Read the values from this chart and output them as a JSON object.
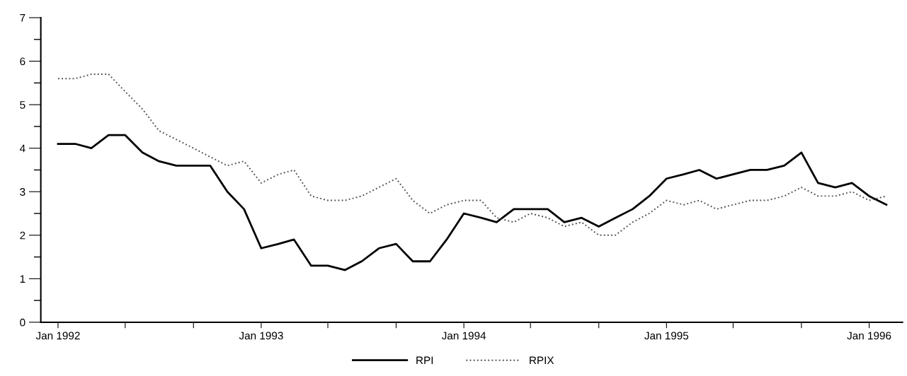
{
  "chart_data": {
    "type": "line",
    "x": [
      "1992-01",
      "1992-02",
      "1992-03",
      "1992-04",
      "1992-05",
      "1992-06",
      "1992-07",
      "1992-08",
      "1992-09",
      "1992-10",
      "1992-11",
      "1992-12",
      "1993-01",
      "1993-02",
      "1993-03",
      "1993-04",
      "1993-05",
      "1993-06",
      "1993-07",
      "1993-08",
      "1993-09",
      "1993-10",
      "1993-11",
      "1993-12",
      "1994-01",
      "1994-02",
      "1994-03",
      "1994-04",
      "1994-05",
      "1994-06",
      "1994-07",
      "1994-08",
      "1994-09",
      "1994-10",
      "1994-11",
      "1994-12",
      "1995-01",
      "1995-02",
      "1995-03",
      "1995-04",
      "1995-05",
      "1995-06",
      "1995-07",
      "1995-08",
      "1995-09",
      "1995-10",
      "1995-11",
      "1995-12",
      "1996-01",
      "1996-02"
    ],
    "series": [
      {
        "name": "RPI",
        "color": "#000000",
        "line_style": "solid",
        "values": [
          4.1,
          4.1,
          4.0,
          4.3,
          4.3,
          3.9,
          3.7,
          3.6,
          3.6,
          3.6,
          3.0,
          2.6,
          1.7,
          1.8,
          1.9,
          1.3,
          1.3,
          1.2,
          1.4,
          1.7,
          1.8,
          1.4,
          1.4,
          1.9,
          2.5,
          2.4,
          2.3,
          2.6,
          2.6,
          2.6,
          2.3,
          2.4,
          2.2,
          2.4,
          2.6,
          2.9,
          3.3,
          3.4,
          3.5,
          3.3,
          3.4,
          3.5,
          3.5,
          3.6,
          3.9,
          3.2,
          3.1,
          3.2,
          2.9,
          2.7
        ]
      },
      {
        "name": "RPIX",
        "color": "#555555",
        "line_style": "dotted",
        "values": [
          5.6,
          5.6,
          5.7,
          5.7,
          5.3,
          4.9,
          4.4,
          4.2,
          4.0,
          3.8,
          3.6,
          3.7,
          3.2,
          3.4,
          3.5,
          2.9,
          2.8,
          2.8,
          2.9,
          3.1,
          3.3,
          2.8,
          2.5,
          2.7,
          2.8,
          2.8,
          2.4,
          2.3,
          2.5,
          2.4,
          2.2,
          2.3,
          2.0,
          2.0,
          2.3,
          2.5,
          2.8,
          2.7,
          2.8,
          2.6,
          2.7,
          2.8,
          2.8,
          2.9,
          3.1,
          2.9,
          2.9,
          3.0,
          2.8,
          2.9
        ]
      }
    ],
    "xlim": [
      "1991-12",
      "1996-03"
    ],
    "xticks": [
      {
        "value": "1992-01",
        "label": "Jan 1992"
      },
      {
        "value": "1992-05",
        "label": null
      },
      {
        "value": "1992-09",
        "label": null
      },
      {
        "value": "1993-01",
        "label": "Jan 1993"
      },
      {
        "value": "1993-05",
        "label": null
      },
      {
        "value": "1993-09",
        "label": null
      },
      {
        "value": "1994-01",
        "label": "Jan 1994"
      },
      {
        "value": "1994-05",
        "label": null
      },
      {
        "value": "1994-09",
        "label": null
      },
      {
        "value": "1995-01",
        "label": "Jan 1995"
      },
      {
        "value": "1995-05",
        "label": null
      },
      {
        "value": "1995-09",
        "label": null
      },
      {
        "value": "1996-01",
        "label": "Jan 1996"
      }
    ],
    "ylim": [
      0,
      7
    ],
    "yticks": [
      0,
      {
        "value": 0.5,
        "label": null
      },
      1,
      {
        "value": 1.5,
        "label": null
      },
      2,
      {
        "value": 2.5,
        "label": null
      },
      3,
      {
        "value": 3.5,
        "label": null
      },
      4,
      {
        "value": 4.5,
        "label": null
      },
      5,
      {
        "value": 5.5,
        "label": null
      },
      6,
      {
        "value": 6.5,
        "label": null
      },
      7
    ],
    "legend": "bottom",
    "grid": false
  }
}
